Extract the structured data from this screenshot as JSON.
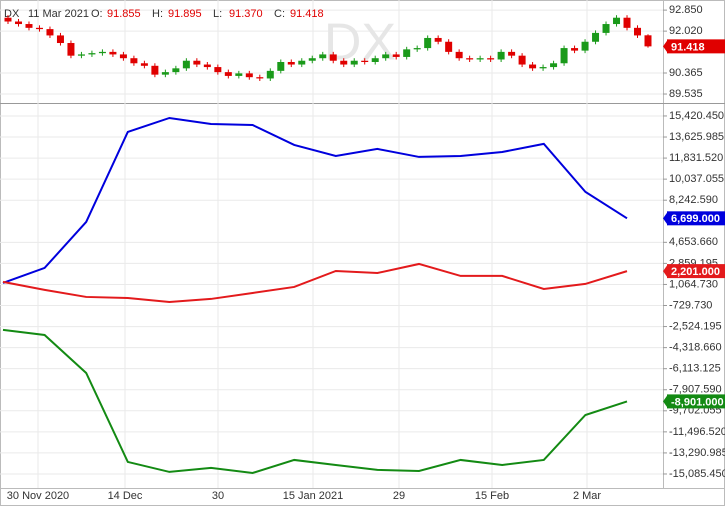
{
  "chart_data": [
    {
      "type": "candlestick",
      "symbol": "DX",
      "date": "11 Mar 2021",
      "header_keys": [
        "O:",
        "H:",
        "L:",
        "C:"
      ],
      "last_bar_labels": [
        "91.855",
        "91.895",
        "91.370",
        "91.418"
      ],
      "up_color": "#1a9a1a",
      "down_color": "#e00000",
      "grid": true,
      "ylim": [
        89.18,
        93.25
      ],
      "yticks": [
        {
          "value": 92.85,
          "label": "92.850"
        },
        {
          "value": 92.02,
          "label": "92.020"
        },
        {
          "value": 90.365,
          "label": "90.365"
        },
        {
          "value": 89.535,
          "label": "89.535"
        }
      ],
      "open": [
        92.55,
        92.4,
        92.3,
        92.15,
        92.1,
        91.85,
        91.55,
        91.05,
        91.1,
        91.15,
        91.2,
        91.1,
        90.95,
        90.75,
        90.65,
        90.3,
        90.4,
        90.55,
        90.85,
        90.7,
        90.6,
        90.4,
        90.25,
        90.35,
        90.2,
        90.15,
        90.45,
        90.8,
        90.7,
        90.85,
        90.95,
        91.1,
        90.85,
        90.7,
        90.85,
        90.8,
        90.95,
        91.1,
        91.0,
        91.3,
        91.35,
        91.75,
        91.6,
        91.2,
        90.95,
        90.9,
        90.95,
        90.9,
        91.2,
        91.05,
        90.7,
        90.55,
        90.6,
        90.75,
        91.35,
        91.25,
        91.6,
        91.95,
        92.3,
        92.55,
        92.15,
        91.855
      ],
      "high": [
        92.65,
        92.5,
        92.4,
        92.25,
        92.2,
        91.95,
        91.65,
        91.2,
        91.25,
        91.3,
        91.3,
        91.2,
        91.05,
        90.85,
        90.75,
        90.5,
        90.65,
        90.95,
        90.95,
        90.8,
        90.7,
        90.5,
        90.45,
        90.45,
        90.3,
        90.55,
        90.9,
        90.9,
        90.95,
        91.05,
        91.2,
        91.2,
        90.95,
        90.95,
        90.95,
        91.05,
        91.2,
        91.2,
        91.4,
        91.45,
        91.85,
        91.85,
        91.7,
        91.3,
        91.05,
        91.05,
        91.05,
        91.3,
        91.3,
        91.15,
        90.8,
        90.7,
        90.85,
        91.45,
        91.45,
        91.7,
        92.05,
        92.4,
        92.65,
        92.65,
        92.25,
        91.895
      ],
      "low": [
        92.3,
        92.2,
        92.05,
        92.0,
        91.75,
        91.45,
        90.95,
        90.95,
        91.0,
        91.05,
        91.0,
        90.85,
        90.65,
        90.55,
        90.2,
        90.2,
        90.3,
        90.45,
        90.6,
        90.5,
        90.3,
        90.15,
        90.15,
        90.1,
        90.05,
        90.05,
        90.35,
        90.6,
        90.6,
        90.75,
        90.85,
        90.75,
        90.6,
        90.6,
        90.7,
        90.7,
        90.85,
        90.9,
        90.9,
        91.2,
        91.25,
        91.5,
        91.1,
        90.85,
        90.8,
        90.8,
        90.8,
        90.8,
        90.95,
        90.6,
        90.45,
        90.45,
        90.5,
        90.65,
        91.15,
        91.15,
        91.5,
        91.85,
        92.2,
        92.05,
        91.75,
        91.37
      ],
      "close": [
        92.4,
        92.3,
        92.15,
        92.1,
        91.85,
        91.55,
        91.05,
        91.1,
        91.15,
        91.2,
        91.1,
        90.95,
        90.75,
        90.65,
        90.3,
        90.4,
        90.55,
        90.85,
        90.7,
        90.6,
        90.4,
        90.25,
        90.35,
        90.2,
        90.15,
        90.45,
        90.8,
        90.7,
        90.85,
        90.95,
        91.1,
        90.85,
        90.7,
        90.85,
        90.8,
        90.95,
        91.1,
        91.0,
        91.3,
        91.35,
        91.75,
        91.6,
        91.2,
        90.95,
        90.9,
        90.95,
        90.9,
        91.2,
        91.05,
        90.7,
        90.55,
        90.6,
        90.75,
        91.35,
        91.25,
        91.6,
        91.95,
        92.3,
        92.55,
        92.15,
        91.85,
        91.418
      ]
    },
    {
      "type": "line",
      "grid": true,
      "categories": [
        null,
        null,
        null,
        null,
        null,
        null,
        null,
        null,
        null,
        null,
        null,
        null,
        null,
        null,
        null,
        null
      ],
      "xtick_labels": [
        "30 Nov 2020",
        "14 Dec",
        "30",
        "15 Jan 2021",
        "29",
        "15 Feb",
        "2 Mar"
      ],
      "ylim": [
        -16280,
        16440
      ],
      "yticks": [
        {
          "value": 15420.45,
          "label": "15,420.450"
        },
        {
          "value": 13625.985,
          "label": "13,625.985"
        },
        {
          "value": 11831.52,
          "label": "11,831.520"
        },
        {
          "value": 10037.055,
          "label": "10,037.055"
        },
        {
          "value": 8242.59,
          "label": "8,242.590"
        },
        {
          "value": 4653.66,
          "label": "4,653.660"
        },
        {
          "value": 2859.195,
          "label": "2,859.195"
        },
        {
          "value": 1064.73,
          "label": "1,064.730"
        },
        {
          "value": -729.73,
          "label": "-729.730"
        },
        {
          "value": -2524.195,
          "label": "-2,524.195"
        },
        {
          "value": -4318.66,
          "label": "-4,318.660"
        },
        {
          "value": -6113.125,
          "label": "-6,113.125"
        },
        {
          "value": -7907.59,
          "label": "-7,907.590"
        },
        {
          "value": -9702.055,
          "label": "-9,702.055"
        },
        {
          "value": -11496.52,
          "label": "-11,496.520"
        },
        {
          "value": -13290.985,
          "label": "-13,290.985"
        },
        {
          "value": -15085.45,
          "label": "-15,085.450"
        }
      ],
      "series": [
        {
          "color": "#0000dd",
          "last_label": "6,699.000",
          "values": [
            1190,
            2470,
            6390,
            14060,
            15250,
            14740,
            14650,
            12950,
            12010,
            12610,
            11930,
            12010,
            12350,
            13040,
            8950,
            6699
          ]
        },
        {
          "color": "#e31a1c",
          "last_label": "2,201.000",
          "values": [
            1280,
            600,
            0,
            -90,
            -430,
            -170,
            340,
            850,
            2210,
            2040,
            2810,
            1790,
            1790,
            680,
            1110,
            2201
          ]
        },
        {
          "color": "#138a13",
          "last_label": "-8,901.000",
          "values": [
            -2810,
            -3240,
            -6480,
            -14060,
            -14910,
            -14570,
            -15000,
            -13890,
            -14320,
            -14740,
            -14830,
            -13890,
            -14320,
            -13890,
            -10060,
            -8901
          ]
        }
      ]
    }
  ]
}
